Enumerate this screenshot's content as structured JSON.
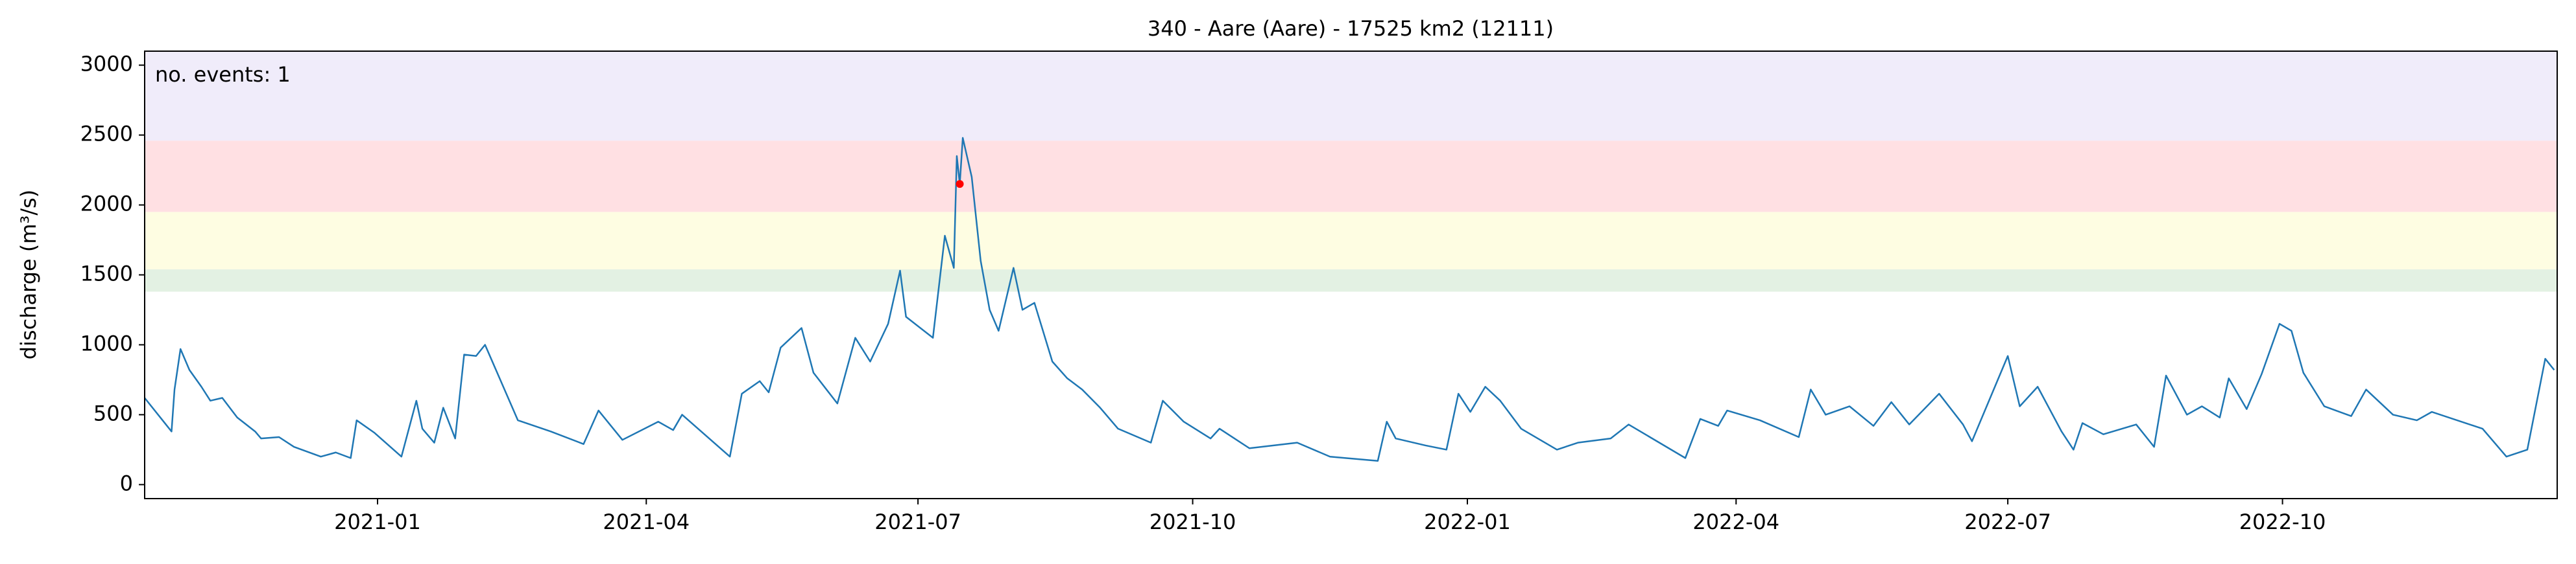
{
  "chart_data": {
    "type": "line",
    "title": "340 - Aare (Aare) - 17525 km2 (12111)",
    "ylabel": "discharge (m³/s)",
    "annotation": "no. events: 1",
    "annotation_color": "#ff0000",
    "xlim": [
      "2020-10-15",
      "2023-01-01"
    ],
    "xticks": [
      "2021-01",
      "2021-04",
      "2021-07",
      "2021-10",
      "2022-01",
      "2022-04",
      "2022-07",
      "2022-10"
    ],
    "ylim": [
      -100,
      3100
    ],
    "yticks": [
      0,
      500,
      1000,
      1500,
      2000,
      2500,
      3000
    ],
    "bands": [
      {
        "from": 1380,
        "to": 1540,
        "color": "#e3f1e3"
      },
      {
        "from": 1540,
        "to": 1950,
        "color": "#fefde2"
      },
      {
        "from": 1950,
        "to": 2460,
        "color": "#ffe0e3"
      },
      {
        "from": 2460,
        "to": 3100,
        "color": "#f0ecfa"
      }
    ],
    "series": [
      {
        "color": "#1f77b4",
        "x": [
          "2020-10-15",
          "2020-10-24",
          "2020-10-25",
          "2020-10-27",
          "2020-10-30",
          "2020-11-03",
          "2020-11-06",
          "2020-11-10",
          "2020-11-15",
          "2020-11-21",
          "2020-11-23",
          "2020-11-29",
          "2020-12-04",
          "2020-12-13",
          "2020-12-18",
          "2020-12-23",
          "2020-12-25",
          "2020-12-31",
          "2021-01-09",
          "2021-01-14",
          "2021-01-16",
          "2021-01-20",
          "2021-01-23",
          "2021-01-27",
          "2021-01-30",
          "2021-02-03",
          "2021-02-06",
          "2021-02-17",
          "2021-02-28",
          "2021-03-11",
          "2021-03-16",
          "2021-03-24",
          "2021-04-05",
          "2021-04-10",
          "2021-04-13",
          "2021-04-29",
          "2021-05-03",
          "2021-05-09",
          "2021-05-12",
          "2021-05-16",
          "2021-05-23",
          "2021-05-27",
          "2021-06-04",
          "2021-06-10",
          "2021-06-15",
          "2021-06-21",
          "2021-06-25",
          "2021-06-27",
          "2021-07-06",
          "2021-07-10",
          "2021-07-13",
          "2021-07-14",
          "2021-07-15",
          "2021-07-16",
          "2021-07-19",
          "2021-07-22",
          "2021-07-25",
          "2021-07-28",
          "2021-08-02",
          "2021-08-05",
          "2021-08-09",
          "2021-08-15",
          "2021-08-20",
          "2021-08-25",
          "2021-08-31",
          "2021-09-06",
          "2021-09-17",
          "2021-09-21",
          "2021-09-28",
          "2021-10-07",
          "2021-10-10",
          "2021-10-20",
          "2021-11-05",
          "2021-11-16",
          "2021-12-02",
          "2021-12-05",
          "2021-12-08",
          "2021-12-18",
          "2021-12-25",
          "2021-12-29",
          "2022-01-02",
          "2022-01-07",
          "2022-01-12",
          "2022-01-19",
          "2022-01-31",
          "2022-02-07",
          "2022-02-18",
          "2022-02-24",
          "2022-03-15",
          "2022-03-20",
          "2022-03-26",
          "2022-03-29",
          "2022-04-09",
          "2022-04-22",
          "2022-04-26",
          "2022-05-01",
          "2022-05-09",
          "2022-05-17",
          "2022-05-23",
          "2022-05-29",
          "2022-06-08",
          "2022-06-16",
          "2022-06-19",
          "2022-07-01",
          "2022-07-05",
          "2022-07-11",
          "2022-07-19",
          "2022-07-23",
          "2022-07-26",
          "2022-08-02",
          "2022-08-13",
          "2022-08-19",
          "2022-08-23",
          "2022-08-30",
          "2022-09-04",
          "2022-09-10",
          "2022-09-13",
          "2022-09-19",
          "2022-09-24",
          "2022-09-30",
          "2022-10-04",
          "2022-10-08",
          "2022-10-15",
          "2022-10-24",
          "2022-10-29",
          "2022-11-07",
          "2022-11-15",
          "2022-11-20",
          "2022-12-07",
          "2022-12-15",
          "2022-12-22",
          "2022-12-28",
          "2022-12-31"
        ],
        "values": [
          620,
          380,
          680,
          970,
          820,
          700,
          600,
          620,
          480,
          380,
          330,
          340,
          270,
          200,
          230,
          190,
          460,
          370,
          200,
          600,
          400,
          300,
          550,
          330,
          930,
          920,
          1000,
          460,
          380,
          290,
          530,
          320,
          450,
          390,
          500,
          200,
          650,
          740,
          660,
          980,
          1120,
          800,
          580,
          1050,
          880,
          1150,
          1530,
          1200,
          1050,
          1780,
          1550,
          2350,
          2150,
          2480,
          2200,
          1600,
          1250,
          1100,
          1550,
          1250,
          1300,
          880,
          760,
          680,
          550,
          400,
          300,
          600,
          450,
          330,
          400,
          260,
          300,
          200,
          170,
          450,
          330,
          280,
          250,
          650,
          520,
          700,
          600,
          400,
          250,
          300,
          330,
          430,
          190,
          470,
          420,
          530,
          460,
          340,
          680,
          500,
          560,
          420,
          590,
          430,
          650,
          430,
          310,
          920,
          560,
          700,
          380,
          250,
          440,
          360,
          430,
          270,
          780,
          500,
          560,
          480,
          760,
          540,
          790,
          1150,
          1100,
          800,
          560,
          490,
          680,
          500,
          460,
          520,
          400,
          200,
          250,
          900,
          820
        ]
      }
    ],
    "events": {
      "color": "#ff0000",
      "x": [
        "2021-07-15"
      ],
      "values": [
        2150
      ]
    }
  }
}
